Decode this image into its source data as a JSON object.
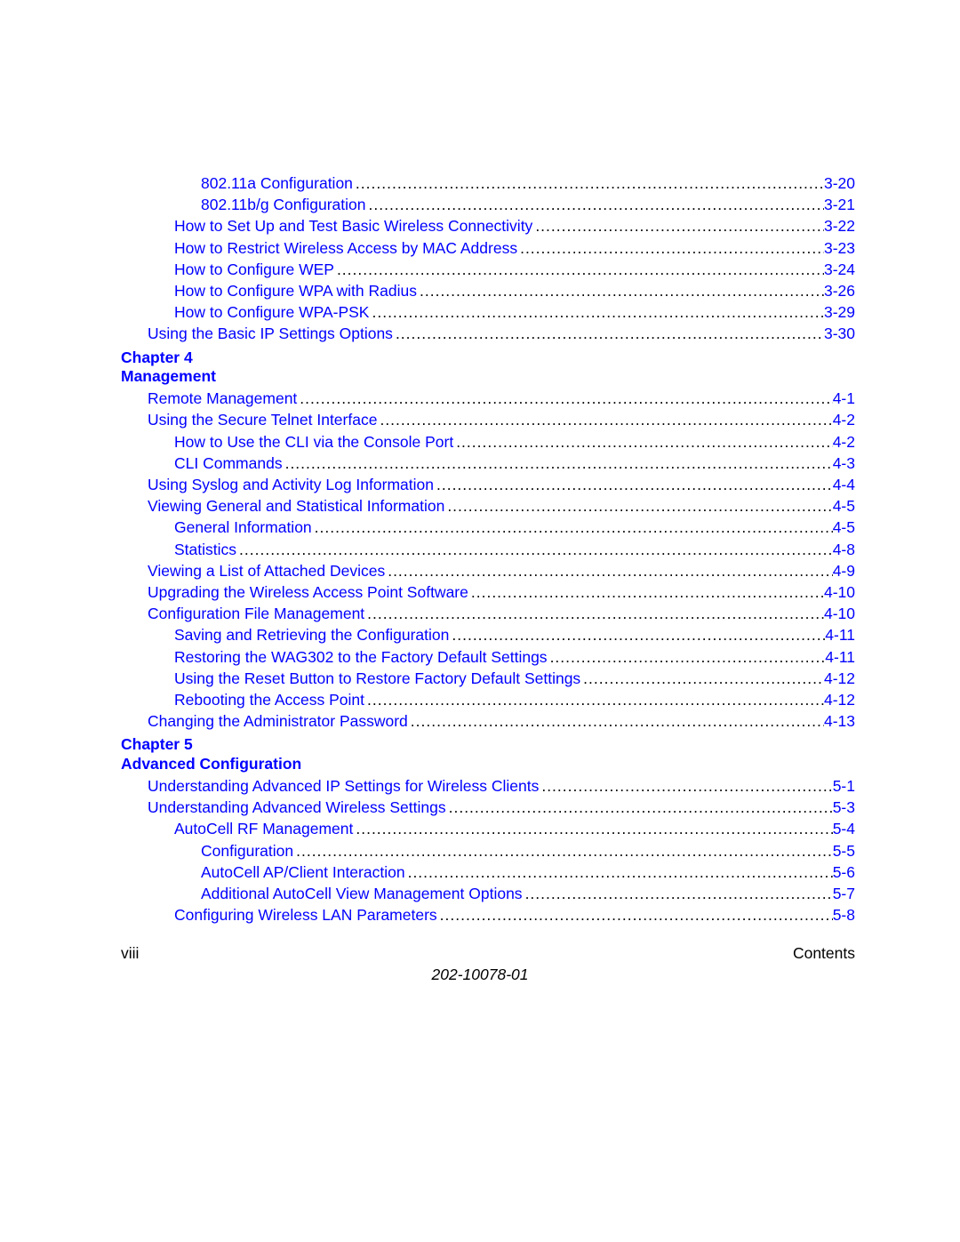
{
  "colors": {
    "link": "#0000ff",
    "text": "#000000",
    "background": "#ffffff"
  },
  "typography": {
    "font_family": "Arial, Helvetica, sans-serif",
    "body_fontsize_pt": 13,
    "heading_fontweight": "bold"
  },
  "entries": [
    {
      "title": "802.11a Configuration",
      "page": "3-20",
      "indent": 2
    },
    {
      "title": "802.11b/g Configuration",
      "page": "3-21",
      "indent": 2
    },
    {
      "title": "How to Set Up and Test Basic Wireless Connectivity",
      "page": "3-22",
      "indent": 1
    },
    {
      "title": "How to Restrict Wireless Access by MAC Address",
      "page": "3-23",
      "indent": 1
    },
    {
      "title": "How to Configure WEP",
      "page": "3-24",
      "indent": 1
    },
    {
      "title": "How to Configure WPA with Radius",
      "page": "3-26",
      "indent": 1
    },
    {
      "title": "How to Configure WPA-PSK",
      "page": "3-29",
      "indent": 1
    },
    {
      "title": "Using the Basic IP Settings Options",
      "page": "3-30",
      "indent": 0
    }
  ],
  "chapter4": {
    "line1": "Chapter 4",
    "line2": "Management"
  },
  "entries_ch4": [
    {
      "title": "Remote Management",
      "page": "4-1",
      "indent": 0
    },
    {
      "title": "Using the Secure Telnet Interface",
      "page": "4-2",
      "indent": 0
    },
    {
      "title": "How to Use the CLI via the Console Port",
      "page": "4-2",
      "indent": 1
    },
    {
      "title": "CLI Commands",
      "page": "4-3",
      "indent": 1
    },
    {
      "title": "Using Syslog and Activity Log Information",
      "page": "4-4",
      "indent": 0
    },
    {
      "title": "Viewing General and Statistical Information",
      "page": "4-5",
      "indent": 0
    },
    {
      "title": "General Information",
      "page": "4-5",
      "indent": 1
    },
    {
      "title": "Statistics",
      "page": "4-8",
      "indent": 1
    },
    {
      "title": "Viewing a List of Attached Devices",
      "page": "4-9",
      "indent": 0
    },
    {
      "title": "Upgrading the Wireless Access Point Software",
      "page": "4-10",
      "indent": 0
    },
    {
      "title": "Configuration File Management",
      "page": "4-10",
      "indent": 0
    },
    {
      "title": "Saving and Retrieving the Configuration",
      "page": "4-11",
      "indent": 1
    },
    {
      "title": "Restoring the WAG302 to the Factory Default Settings",
      "page": "4-11",
      "indent": 1
    },
    {
      "title": "Using the Reset Button to Restore Factory Default Settings",
      "page": "4-12",
      "indent": 1
    },
    {
      "title": "Rebooting the Access Point",
      "page": "4-12",
      "indent": 1
    },
    {
      "title": "Changing the Administrator Password",
      "page": "4-13",
      "indent": 0
    }
  ],
  "chapter5": {
    "line1": "Chapter 5",
    "line2": "Advanced Configuration"
  },
  "entries_ch5": [
    {
      "title": "Understanding Advanced IP Settings for Wireless Clients",
      "page": "5-1",
      "indent": 0
    },
    {
      "title": "Understanding Advanced Wireless Settings",
      "page": "5-3",
      "indent": 0
    },
    {
      "title": "AutoCell RF Management",
      "page": "5-4",
      "indent": 1
    },
    {
      "title": "Configuration",
      "page": "5-5",
      "indent": 2
    },
    {
      "title": "AutoCell AP/Client Interaction",
      "page": "5-6",
      "indent": 2
    },
    {
      "title": "Additional AutoCell View Management Options",
      "page": "5-7",
      "indent": 2
    },
    {
      "title": "Configuring Wireless LAN Parameters",
      "page": "5-8",
      "indent": 1
    }
  ],
  "footer": {
    "page_roman": "viii",
    "section_label": "Contents",
    "doc_number": "202-10078-01"
  }
}
